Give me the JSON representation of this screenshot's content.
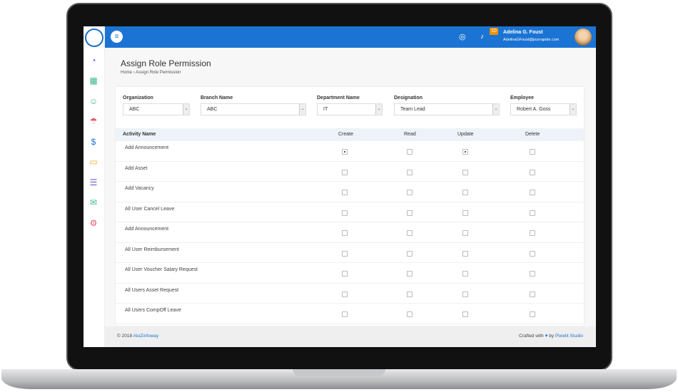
{
  "header": {
    "user_name": "Adelina G. Foust",
    "user_email": "AdelinaGFoust@jourrapide.com",
    "notification_count": "10",
    "accent": "#1b74d3"
  },
  "page": {
    "title": "Assign Role Permission",
    "breadcrumb": [
      "Home",
      "›",
      "Assign Role Permission"
    ]
  },
  "filters": [
    {
      "label": "Organization",
      "value": "ABC"
    },
    {
      "label": "Branch Name",
      "value": "ABC"
    },
    {
      "label": "Department Name",
      "value": "IT"
    },
    {
      "label": "Designation",
      "value": "Team Lead"
    },
    {
      "label": "Employee",
      "value": "Robert A. Goss"
    }
  ],
  "table": {
    "headers": [
      "Activity Name",
      "Create",
      "Read",
      "Update",
      "Delete"
    ],
    "rows": [
      {
        "name": "Add Announcement",
        "create": true,
        "read": false,
        "update": true,
        "delete": false
      },
      {
        "name": "Add Asset",
        "create": false,
        "read": false,
        "update": false,
        "delete": false
      },
      {
        "name": "Add Vacancy",
        "create": false,
        "read": false,
        "update": false,
        "delete": false
      },
      {
        "name": "All User Cancel Leave",
        "create": false,
        "read": false,
        "update": false,
        "delete": false
      },
      {
        "name": "Add Announcement",
        "create": false,
        "read": false,
        "update": false,
        "delete": false
      },
      {
        "name": "All User Reimbursement",
        "create": false,
        "read": false,
        "update": false,
        "delete": false
      },
      {
        "name": "All User Voucher Salary Request",
        "create": false,
        "read": false,
        "update": false,
        "delete": false
      },
      {
        "name": "All Users Asset Request",
        "create": false,
        "read": false,
        "update": false,
        "delete": false
      },
      {
        "name": "All Users CompOff Leave",
        "create": false,
        "read": false,
        "update": false,
        "delete": false
      }
    ]
  },
  "footer": {
    "copyright": "© 2018",
    "company": "AtoZinfoway",
    "crafted": "Crafted with",
    "by": "by",
    "studio": "Pixielit Studio"
  },
  "sidebar": {
    "icons": [
      "dashboard-icon",
      "calendar-icon",
      "users-icon",
      "holiday-icon",
      "payroll-icon",
      "chat-icon",
      "documents-icon",
      "message-icon",
      "settings-icon"
    ]
  }
}
